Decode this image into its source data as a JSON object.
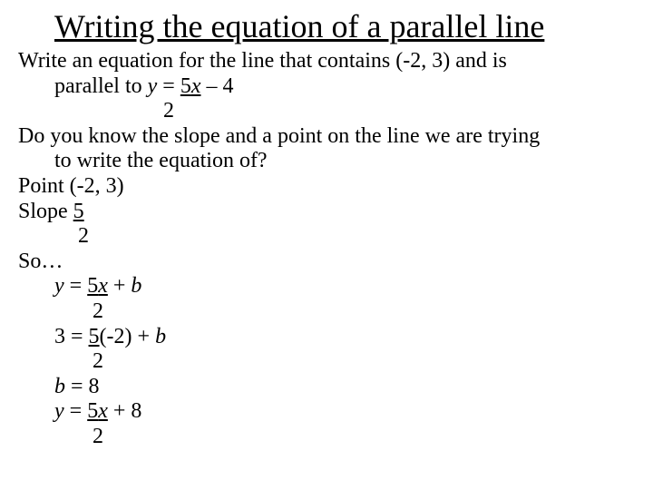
{
  "title": "Writing the equation of a parallel line",
  "lines": {
    "l1a": "Write an equation for the line that contains (-2, 3) and is",
    "l1b_pre": "parallel to ",
    "l1b_y": "y",
    "l1b_mid": " = ",
    "l1b_5": "5",
    "l1b_x": "x",
    "l1b_end": " – 4",
    "l1c": "2",
    "l2a": "Do you know the slope and a point on the line we are trying",
    "l2b": "to write the equation of?",
    "l3": "Point (-2, 3)",
    "l4a": "Slope ",
    "l4a_5": "5",
    "l4b": "2",
    "l5": "So…",
    "l6a_y": "y",
    "l6a_mid": " = ",
    "l6a_5": "5",
    "l6a_x": "x",
    "l6a_end": " + ",
    "l6a_b": "b",
    "l6b": "2",
    "l7a_pre": "3 = ",
    "l7a_5": "5",
    "l7a_mid": "(-2) + ",
    "l7a_b": "b",
    "l7b": "2",
    "l8_b": "b",
    "l8_end": " = 8",
    "l9a_y": "y",
    "l9a_mid": " = ",
    "l9a_5": "5",
    "l9a_x": "x",
    "l9a_end": " + 8",
    "l9b": "2"
  }
}
